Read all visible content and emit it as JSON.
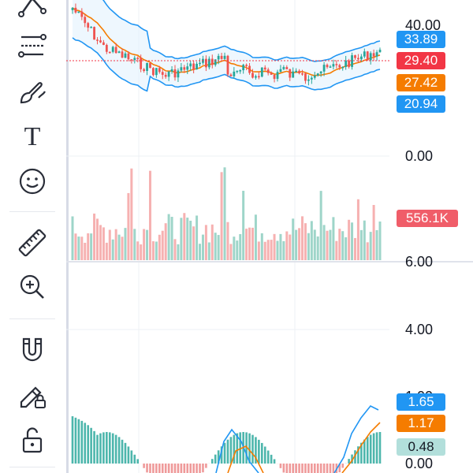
{
  "toolbar": {
    "tools": [
      {
        "name": "trend-line-tool",
        "icon": "line-tool-icon"
      },
      {
        "name": "fib-tool",
        "icon": "fib-retracement-icon"
      },
      {
        "name": "brush-tool",
        "icon": "brush-icon"
      },
      {
        "name": "text-tool",
        "icon": "text-icon"
      },
      {
        "name": "emoji-tool",
        "icon": "smiley-icon"
      },
      {
        "name": "measure-tool",
        "icon": "ruler-icon"
      },
      {
        "name": "zoom-tool",
        "icon": "zoom-in-icon"
      },
      {
        "name": "magnet-tool",
        "icon": "magnet-icon"
      },
      {
        "name": "lock-drawings-tool",
        "icon": "pencil-lock-icon"
      },
      {
        "name": "lock-tool",
        "icon": "unlock-icon"
      }
    ],
    "text_glyph": "T"
  },
  "price_pane": {
    "axis_top": "40.00",
    "axis_bottom": "0.00",
    "badges": {
      "upper_band": "33.89",
      "last_price": "29.40",
      "ma": "27.42",
      "lower_band": "20.94"
    }
  },
  "volume_pane": {
    "axis_bottom": "6.00",
    "last_volume": "556.1K"
  },
  "macd_pane": {
    "axis_top": "4.00",
    "axis_mid": "1.00",
    "axis_bottom": "0.00",
    "badges": {
      "macd": "1.65",
      "signal": "1.17",
      "hist": "0.48"
    }
  },
  "colors": {
    "up": "#26a69a",
    "down": "#ef5350",
    "band": "#2196f3",
    "ma": "#f57c00",
    "price_line": "#f23645",
    "volume_up": "#9ed5c9",
    "volume_down": "#f6b1b1"
  }
}
